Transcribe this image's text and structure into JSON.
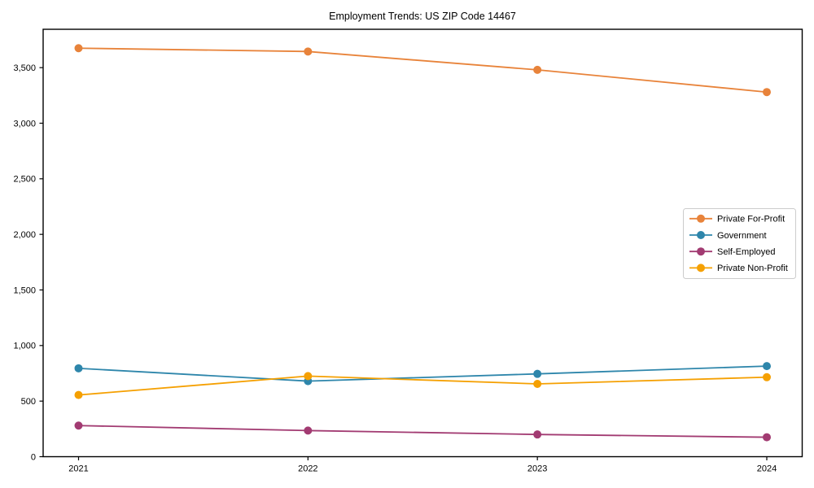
{
  "chart_data": {
    "type": "line",
    "title": "Employment Trends: US ZIP Code 14467",
    "x": [
      "2021",
      "2022",
      "2023",
      "2024"
    ],
    "series": [
      {
        "name": "Private For-Profit",
        "color": "#E8833A",
        "values": [
          3675,
          3645,
          3480,
          3280
        ]
      },
      {
        "name": "Government",
        "color": "#2E86AB",
        "values": [
          795,
          680,
          745,
          815
        ]
      },
      {
        "name": "Self-Employed",
        "color": "#A23B72",
        "values": [
          280,
          235,
          200,
          175
        ]
      },
      {
        "name": "Private Non-Profit",
        "color": "#F5A002",
        "values": [
          555,
          725,
          655,
          715
        ]
      }
    ],
    "xlabel": "",
    "ylabel": "",
    "ylim": [
      0,
      3845
    ],
    "yticks": [
      0,
      500,
      1000,
      1500,
      2000,
      2500,
      3000,
      3500
    ],
    "grid": false,
    "legend_position": "center right",
    "legend_border_color": "#cccccc",
    "frame_color": "#000000",
    "marker": "o"
  }
}
